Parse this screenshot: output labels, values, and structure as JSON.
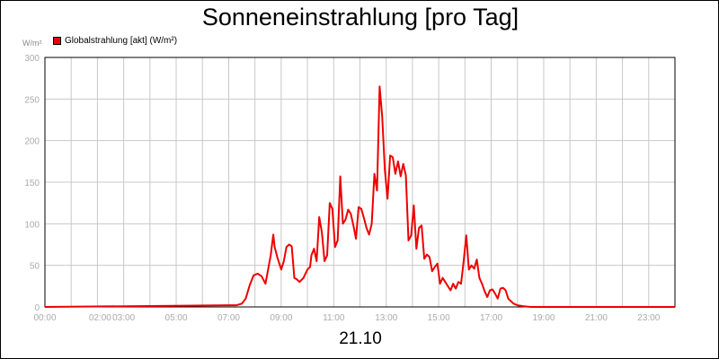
{
  "chart_data": {
    "type": "line",
    "title": "Sonneneinstrahlung [pro Tag]",
    "ylabel": "W/m²",
    "xlabel": "21.10",
    "ylim": [
      0,
      300
    ],
    "xlim": [
      0,
      24
    ],
    "y_ticks": [
      0,
      50,
      100,
      150,
      200,
      250,
      300
    ],
    "x_ticks": [
      {
        "h": 0,
        "label": "00:00"
      },
      {
        "h": 2.1,
        "label": "02:00"
      },
      {
        "h": 3,
        "label": "03:00"
      },
      {
        "h": 5,
        "label": "05:00"
      },
      {
        "h": 7,
        "label": "07:00"
      },
      {
        "h": 9,
        "label": "09:00"
      },
      {
        "h": 11,
        "label": "11:00"
      },
      {
        "h": 13,
        "label": "13:00"
      },
      {
        "h": 15,
        "label": "15:00"
      },
      {
        "h": 17,
        "label": "17:00"
      },
      {
        "h": 19,
        "label": "19:00"
      },
      {
        "h": 21,
        "label": "21:00"
      },
      {
        "h": 23,
        "label": "23:00"
      }
    ],
    "grid_hours": [
      0,
      1,
      2,
      3,
      4,
      5,
      6,
      7,
      8,
      9,
      10,
      11,
      12,
      13,
      14,
      15,
      16,
      17,
      18,
      19,
      20,
      21,
      22,
      23,
      24
    ],
    "grid": true,
    "legend_position": "top-left",
    "series": [
      {
        "name": "Globalstrahlung [akt] (W/m²)",
        "color": "#ee0000",
        "x": [
          0,
          7.3,
          7.5,
          7.65,
          7.8,
          7.95,
          8.1,
          8.25,
          8.4,
          8.5,
          8.6,
          8.7,
          8.75,
          8.85,
          9.0,
          9.1,
          9.2,
          9.3,
          9.4,
          9.5,
          9.6,
          9.7,
          9.85,
          10.0,
          10.1,
          10.15,
          10.25,
          10.35,
          10.45,
          10.55,
          10.65,
          10.75,
          10.85,
          10.95,
          11.05,
          11.15,
          11.25,
          11.35,
          11.45,
          11.55,
          11.65,
          11.75,
          11.85,
          11.95,
          12.05,
          12.15,
          12.25,
          12.35,
          12.45,
          12.55,
          12.65,
          12.75,
          12.85,
          12.95,
          13.05,
          13.15,
          13.25,
          13.35,
          13.45,
          13.55,
          13.65,
          13.75,
          13.85,
          13.95,
          14.05,
          14.15,
          14.25,
          14.35,
          14.45,
          14.55,
          14.65,
          14.75,
          14.85,
          14.95,
          15.05,
          15.15,
          15.25,
          15.35,
          15.45,
          15.55,
          15.65,
          15.75,
          15.85,
          15.95,
          16.05,
          16.15,
          16.25,
          16.35,
          16.45,
          16.55,
          16.65,
          16.75,
          16.85,
          16.95,
          17.05,
          17.15,
          17.25,
          17.35,
          17.45,
          17.55,
          17.65,
          17.75,
          17.85,
          18.0,
          18.2,
          18.5,
          18.8,
          24
        ],
        "y": [
          0,
          2,
          4,
          10,
          26,
          38,
          40,
          37,
          28,
          45,
          62,
          87,
          72,
          60,
          45,
          55,
          72,
          75,
          73,
          35,
          33,
          30,
          35,
          45,
          48,
          62,
          70,
          55,
          108,
          90,
          55,
          62,
          125,
          118,
          72,
          80,
          157,
          100,
          105,
          117,
          112,
          98,
          82,
          120,
          118,
          107,
          95,
          87,
          100,
          160,
          140,
          265,
          228,
          165,
          130,
          182,
          180,
          160,
          175,
          157,
          172,
          158,
          80,
          86,
          122,
          70,
          95,
          98,
          58,
          63,
          60,
          43,
          48,
          52,
          28,
          35,
          30,
          25,
          20,
          28,
          22,
          30,
          28,
          55,
          86,
          45,
          50,
          46,
          57,
          35,
          28,
          19,
          12,
          20,
          21,
          16,
          10,
          22,
          23,
          20,
          10,
          7,
          4,
          2,
          1,
          0,
          0,
          0
        ]
      }
    ]
  }
}
